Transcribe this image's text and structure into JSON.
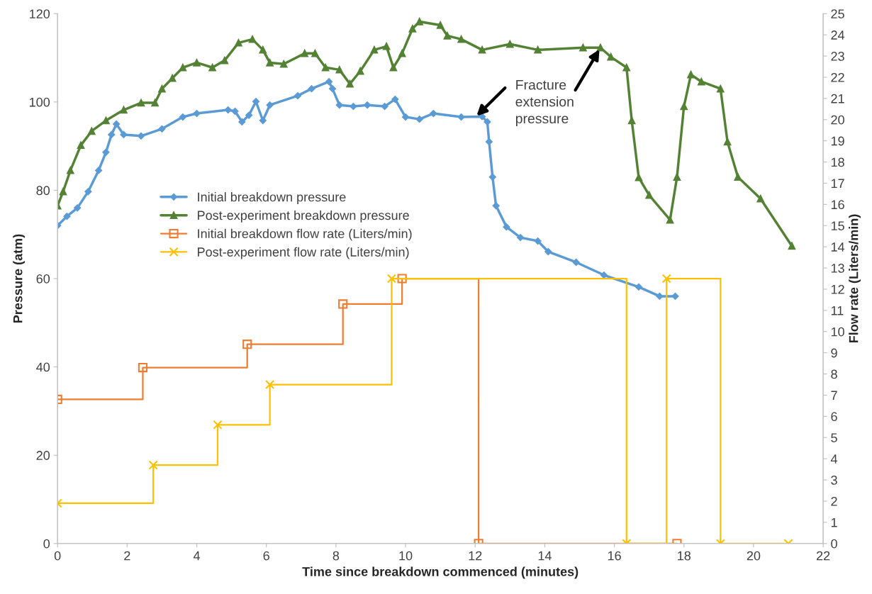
{
  "chart_data": {
    "type": "line",
    "xlabel": "Time since breakdown commenced (minutes)",
    "ylabel": "Pressure (atm)",
    "y2label": "Flow rate (Liters/min)",
    "xlim": [
      0,
      22
    ],
    "xticks": [
      0,
      2,
      4,
      6,
      8,
      10,
      12,
      14,
      16,
      18,
      20,
      22
    ],
    "ylim": [
      0,
      120
    ],
    "yticks": [
      0,
      20,
      40,
      60,
      80,
      100,
      120
    ],
    "y2lim": [
      0,
      25
    ],
    "y2ticks": [
      0,
      1,
      2,
      3,
      4,
      5,
      6,
      7,
      8,
      9,
      10,
      11,
      12,
      13,
      14,
      15,
      16,
      17,
      18,
      19,
      20,
      21,
      22,
      23,
      24,
      25
    ],
    "grid": false,
    "legend": "center left",
    "line_style": "solid",
    "series": [
      {
        "name": "Initial breakdown pressure",
        "color": "#5b9bd5",
        "marker": "diamond",
        "x": [
          0,
          0.27,
          0.57,
          0.88,
          1.18,
          1.39,
          1.55,
          1.69,
          1.9,
          2.4,
          3.0,
          3.6,
          4.0,
          4.9,
          5.1,
          5.3,
          5.5,
          5.7,
          5.9,
          6.1,
          6.9,
          7.3,
          7.8,
          7.9,
          8.1,
          8.5,
          8.9,
          9.4,
          9.7,
          10.0,
          10.4,
          10.8,
          11.6,
          12.2,
          12.35,
          12.4,
          12.5,
          12.6,
          12.9,
          13.3,
          13.8,
          14.1,
          14.9,
          15.7,
          16.7,
          17.3,
          17.75
        ],
        "values": [
          72,
          74.1,
          76,
          79.7,
          84.5,
          88.6,
          92.6,
          95,
          92.6,
          92.3,
          93.9,
          96.6,
          97.4,
          98.2,
          97.9,
          95.5,
          97,
          100.1,
          95.8,
          99.3,
          101.4,
          103,
          104.6,
          103,
          99.3,
          99,
          99.3,
          99,
          100.6,
          96.6,
          96.1,
          97.4,
          96.6,
          96.7,
          95.5,
          91,
          83,
          76.5,
          71.7,
          69.3,
          68.5,
          66.1,
          63.7,
          60.8,
          58.1,
          56,
          56
        ]
      },
      {
        "name": "Post-experiment breakdown pressure",
        "color": "#548235",
        "marker": "triangle",
        "x": [
          0,
          0.16,
          0.37,
          0.67,
          0.98,
          1.39,
          1.9,
          2.4,
          2.8,
          3.0,
          3.3,
          3.6,
          4.0,
          4.45,
          4.8,
          5.2,
          5.6,
          5.9,
          6.1,
          6.5,
          7.1,
          7.4,
          7.7,
          8.1,
          8.4,
          8.7,
          9.1,
          9.45,
          9.65,
          9.9,
          10.2,
          10.4,
          11.0,
          11.2,
          11.6,
          12.2,
          13.0,
          13.8,
          15.1,
          15.6,
          15.9,
          16.35,
          16.5,
          16.7,
          17.0,
          17.6,
          17.8,
          18.0,
          18.2,
          18.5,
          19.05,
          19.25,
          19.55,
          20.2,
          21.1
        ],
        "values": [
          76.5,
          79.7,
          84.5,
          90.2,
          93.4,
          95.8,
          98.2,
          99.8,
          99.8,
          103,
          105.4,
          107.8,
          108.9,
          107.8,
          109.4,
          113.4,
          114.2,
          111.8,
          108.9,
          108.6,
          111,
          111,
          107.8,
          107.3,
          104.1,
          107,
          111.8,
          112.6,
          107.8,
          111,
          116.6,
          118.2,
          117.4,
          115,
          114.2,
          111.8,
          113.1,
          111.8,
          112.3,
          112.3,
          110.2,
          107.8,
          95.8,
          82.9,
          78.9,
          73.3,
          83,
          99,
          106.2,
          104.6,
          103,
          91,
          83,
          78.1,
          67.4
        ]
      },
      {
        "name": "Initial breakdown flow rate (Liters/min)",
        "color": "#ed7d31",
        "type": "step",
        "axis": "y2",
        "marker": "square",
        "x": [
          0,
          2.45,
          5.45,
          8.2,
          9.9,
          12.1,
          17.8
        ],
        "values": [
          6.8,
          8.3,
          9.4,
          11.3,
          12.5,
          0,
          0
        ]
      },
      {
        "name": "Post-experiment flow rate (Liters/min)",
        "color": "#ffc000",
        "type": "step",
        "axis": "y2",
        "marker": "cross",
        "x": [
          0,
          2.75,
          4.6,
          6.1,
          9.6,
          16.35,
          17.5,
          19.05,
          21.0
        ],
        "values": [
          1.9,
          3.7,
          5.6,
          7.5,
          12.5,
          0,
          12.5,
          0,
          0
        ]
      }
    ],
    "annotations": [
      {
        "text": "Fracture\nextension\npressure",
        "x": 12.0,
        "y": 96.5
      }
    ]
  }
}
